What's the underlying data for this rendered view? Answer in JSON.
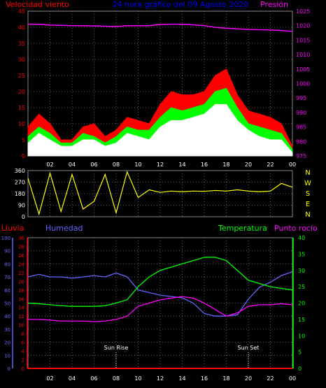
{
  "chart_data": [
    {
      "type": "area",
      "title": "24 hora gráfico del  09 Agosto 2020",
      "left_axis_label": "Velocidad viento",
      "right_axis_label": "Presión",
      "y_left_lim": [
        0,
        45
      ],
      "y_left_ticks": [
        "0",
        "5",
        "10",
        "15",
        "20",
        "25",
        "30",
        "35",
        "40",
        "45"
      ],
      "y_right_lim": [
        975,
        1025
      ],
      "y_right_ticks": [
        "975",
        "980",
        "985",
        "990",
        "995",
        "1000",
        "1005",
        "1010",
        "1015",
        "1020",
        "1025"
      ],
      "x_ticks": [
        "02",
        "04",
        "06",
        "08",
        "10",
        "12",
        "14",
        "16",
        "18",
        "20",
        "22",
        "00"
      ],
      "x_hours": [
        0,
        1,
        2,
        3,
        4,
        5,
        6,
        7,
        8,
        9,
        10,
        11,
        12,
        13,
        14,
        15,
        16,
        17,
        18,
        19,
        20,
        21,
        22,
        23,
        24
      ],
      "grid": true,
      "series": [
        {
          "color": "#ff0000",
          "values": [
            9,
            13,
            10,
            5,
            5,
            9,
            10,
            6,
            8,
            12,
            11,
            10,
            16,
            20,
            19,
            19,
            20,
            25,
            27,
            19,
            14,
            13,
            12,
            10,
            3
          ]
        },
        {
          "color": "#00ff00",
          "values": [
            6,
            9,
            7,
            4,
            4,
            7,
            6,
            4,
            6,
            9,
            8,
            8,
            12,
            15,
            14,
            15,
            16,
            20,
            21,
            15,
            10,
            9,
            8,
            7,
            2
          ]
        },
        {
          "color": "#ffffff",
          "values": [
            4,
            7,
            5,
            3,
            3,
            5,
            5,
            3,
            4,
            7,
            6,
            5,
            9,
            11,
            11,
            12,
            13,
            16,
            16,
            11,
            8,
            6,
            5,
            5,
            1
          ]
        },
        {
          "color": "#ff00ff",
          "axis": "right",
          "values": [
            1020.5,
            1020.5,
            1020.2,
            1020.1,
            1020,
            1020,
            1019.9,
            1019.8,
            1019.7,
            1020,
            1020,
            1020,
            1020.4,
            1020.5,
            1020.5,
            1020.3,
            1020,
            1019.4,
            1019.1,
            1018.9,
            1018.7,
            1018.6,
            1018.5,
            1018.3,
            1018
          ]
        }
      ]
    },
    {
      "type": "line",
      "title": "",
      "y_left_lim": [
        0,
        360
      ],
      "y_left_ticks": [
        "0",
        "90",
        "180",
        "270",
        "360"
      ],
      "compass_labels": [
        "N",
        "W",
        "S",
        "E",
        "N"
      ],
      "x_ticks": [
        "02",
        "04",
        "06",
        "08",
        "10",
        "12",
        "14",
        "16",
        "18",
        "20",
        "22",
        "00"
      ],
      "x_hours": [
        0,
        1,
        2,
        3,
        4,
        5,
        6,
        7,
        8,
        9,
        10,
        11,
        12,
        13,
        14,
        15,
        16,
        17,
        18,
        19,
        20,
        21,
        22,
        23,
        24
      ],
      "grid": true,
      "series": [
        {
          "color": "#ffff00",
          "values": [
            300,
            20,
            340,
            40,
            330,
            60,
            120,
            330,
            30,
            350,
            150,
            210,
            190,
            200,
            195,
            200,
            198,
            205,
            200,
            210,
            200,
            195,
            200,
            260,
            230
          ]
        }
      ]
    },
    {
      "type": "line",
      "title": "",
      "labels": {
        "lluvia": "Lluvia",
        "humedad": "Humedad",
        "temperatura": "Temperatura",
        "punto_rocio": "Punto rocío"
      },
      "humidity_lim": [
        0,
        100
      ],
      "humidity_ticks": [
        "0",
        "10",
        "20",
        "30",
        "40",
        "50",
        "60",
        "70",
        "80",
        "90",
        "100"
      ],
      "rain_lim": [
        0,
        30
      ],
      "rain_ticks": [
        "0",
        "2",
        "4",
        "6",
        "8",
        "10",
        "12",
        "14",
        "16",
        "18",
        "20",
        "22",
        "24",
        "26",
        "28",
        "30"
      ],
      "temp_lim": [
        0,
        40
      ],
      "temp_ticks": [
        "0",
        "5",
        "10",
        "15",
        "20",
        "25",
        "30",
        "35",
        "40"
      ],
      "x_ticks": [
        "02",
        "04",
        "06",
        "08",
        "10",
        "12",
        "14",
        "16",
        "18",
        "20",
        "22",
        "00"
      ],
      "x_hours": [
        0,
        1,
        2,
        3,
        4,
        5,
        6,
        7,
        8,
        9,
        10,
        11,
        12,
        13,
        14,
        15,
        16,
        17,
        18,
        19,
        20,
        21,
        22,
        23,
        24
      ],
      "annotations": [
        {
          "text": "Sun Rise",
          "hour": 8
        },
        {
          "text": "Sun Set",
          "hour": 20
        }
      ],
      "grid": true,
      "series": [
        {
          "color": "#6666ff",
          "axis": "humedad",
          "values": [
            70,
            72,
            70,
            70,
            69,
            70,
            71,
            70,
            73,
            70,
            60,
            58,
            56,
            55,
            54,
            50,
            42,
            40,
            40,
            41,
            53,
            62,
            66,
            71,
            74
          ]
        },
        {
          "color": "#00ff00",
          "axis": "temperatura",
          "values": [
            20,
            19.8,
            19.5,
            19.2,
            19,
            19,
            19,
            19.2,
            20,
            21,
            25,
            28,
            30,
            31,
            32,
            33,
            34,
            34,
            33,
            30,
            27,
            26,
            25,
            24.5,
            24
          ]
        },
        {
          "color": "#ff00ff",
          "axis": "temperatura",
          "values": [
            15,
            15,
            14.8,
            14.5,
            14.5,
            14.5,
            14.3,
            14.5,
            15,
            16,
            19,
            20,
            21,
            21.5,
            22,
            21.5,
            20,
            18,
            16,
            17,
            19,
            19.5,
            19.5,
            19.8,
            19.5
          ]
        },
        {
          "color": "#ff0000",
          "axis": "lluvia",
          "values": [
            0,
            0,
            0,
            0,
            0,
            0,
            0,
            0,
            0,
            0,
            0,
            0,
            0,
            0,
            0,
            0,
            0,
            0,
            0,
            0,
            0,
            0,
            0,
            0,
            0
          ]
        }
      ]
    }
  ]
}
